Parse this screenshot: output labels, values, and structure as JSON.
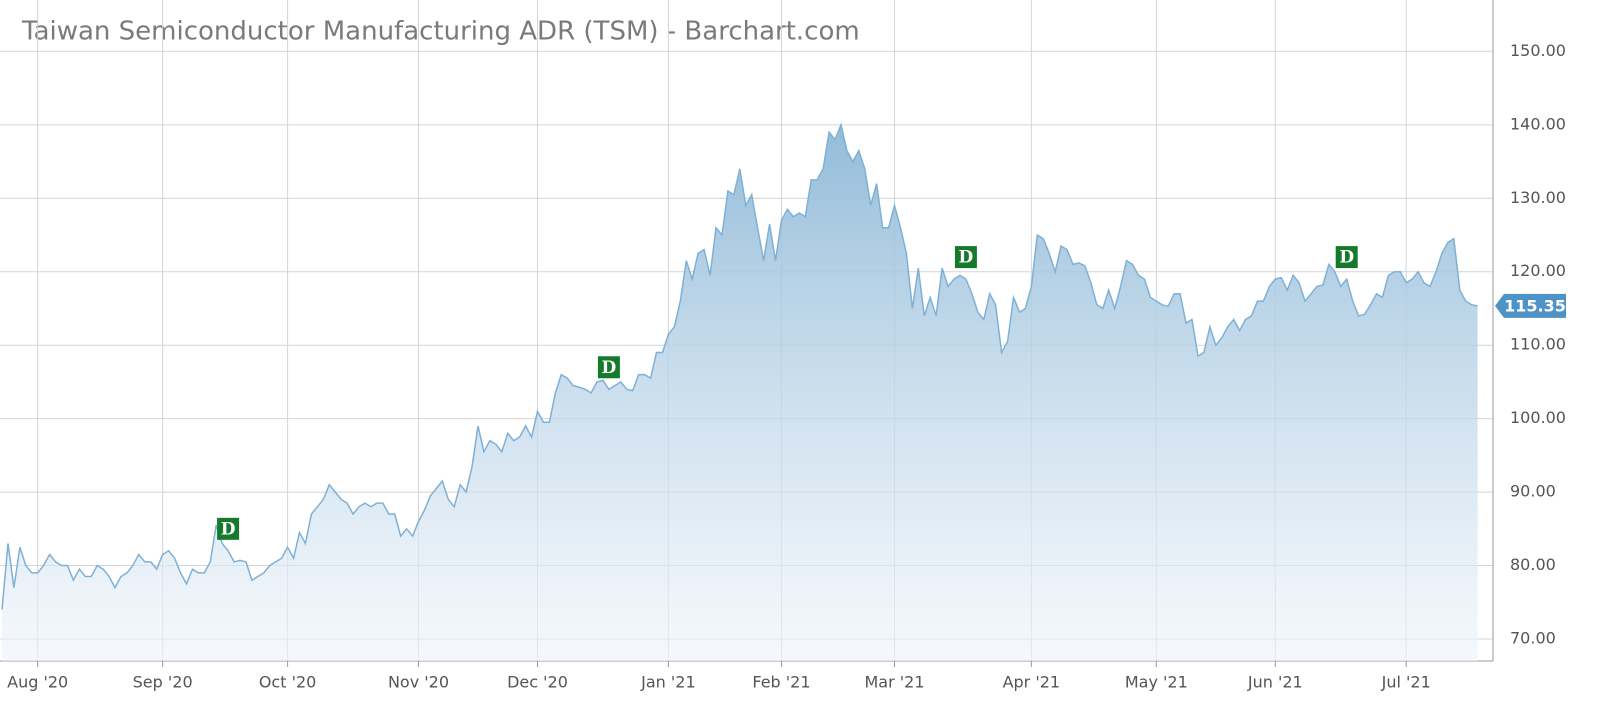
{
  "chart_data": {
    "type": "area",
    "title": "Taiwan Semiconductor Manufacturing ADR (TSM) - Barchart.com",
    "categories": [
      null,
      null,
      null,
      null,
      null,
      null,
      "Aug '20",
      null,
      null,
      null,
      null,
      null,
      null,
      null,
      null,
      null,
      null,
      null,
      null,
      null,
      null,
      null,
      null,
      null,
      null,
      null,
      null,
      "Sep '20",
      null,
      null,
      null,
      null,
      null,
      null,
      null,
      null,
      null,
      null,
      null,
      null,
      null,
      null,
      null,
      null,
      null,
      null,
      null,
      null,
      "Oct '20",
      null,
      null,
      null,
      null,
      null,
      null,
      null,
      null,
      null,
      null,
      null,
      null,
      null,
      null,
      null,
      null,
      null,
      null,
      null,
      null,
      null,
      "Nov '20",
      null,
      null,
      null,
      null,
      null,
      null,
      null,
      null,
      null,
      null,
      null,
      null,
      null,
      null,
      null,
      null,
      null,
      null,
      null,
      "Dec '20",
      null,
      null,
      null,
      null,
      null,
      null,
      null,
      null,
      null,
      null,
      null,
      null,
      null,
      null,
      null,
      null,
      null,
      null,
      null,
      null,
      null,
      "Jan '21",
      null,
      null,
      null,
      null,
      null,
      null,
      null,
      null,
      null,
      null,
      null,
      null,
      null,
      null,
      null,
      null,
      null,
      null,
      "Feb '21",
      null,
      null,
      null,
      null,
      null,
      null,
      null,
      null,
      null,
      null,
      null,
      null,
      null,
      null,
      null,
      null,
      null,
      null,
      "Mar '21",
      null,
      null,
      null,
      null,
      null,
      null,
      null,
      null,
      null,
      null,
      null,
      null,
      null,
      null,
      null,
      null,
      null,
      null,
      null,
      null,
      null,
      null,
      "Apr '21",
      null,
      null,
      null,
      null,
      null,
      null,
      null,
      null,
      null,
      null,
      null,
      null,
      null,
      null,
      null,
      null,
      null,
      null,
      null,
      null,
      "May '21",
      null,
      null,
      null,
      null,
      null,
      null,
      null,
      null,
      null,
      null,
      null,
      null,
      null,
      null,
      null,
      null,
      null,
      null,
      null,
      "Jun '21",
      null,
      null,
      null,
      null,
      null,
      null,
      null,
      null,
      null,
      null,
      null,
      null,
      null,
      null,
      null,
      null,
      null,
      null,
      null,
      null,
      null,
      "Jul '21",
      null,
      null,
      null,
      null,
      null,
      null,
      null,
      null,
      null,
      null,
      null,
      null
    ],
    "values": [
      74,
      83,
      77,
      82.5,
      80,
      79,
      79,
      80,
      81.5,
      80.5,
      80,
      80,
      78,
      79.5,
      78.5,
      78.5,
      80,
      79.5,
      78.5,
      77,
      78.5,
      79,
      80,
      81.5,
      80.5,
      80.5,
      79.5,
      81.5,
      82,
      81,
      79,
      77.5,
      79.5,
      79,
      79,
      80.5,
      85.5,
      83,
      82,
      80.5,
      80.7,
      80.5,
      78,
      78.5,
      79,
      80,
      80.5,
      81,
      82.5,
      81,
      84.5,
      83,
      87,
      88,
      89,
      91,
      90,
      89,
      88.5,
      87,
      88,
      88.5,
      88,
      88.5,
      88.5,
      87,
      87,
      84,
      85,
      84,
      86,
      87.5,
      89.5,
      90.5,
      91.5,
      89,
      88,
      91,
      90,
      93.5,
      99,
      95.5,
      97,
      96.5,
      95.5,
      98,
      97,
      97.5,
      99,
      97.5,
      101,
      99.5,
      99.5,
      103.5,
      106,
      105.5,
      104.5,
      104.3,
      104,
      103.5,
      105,
      105.2,
      104,
      104.5,
      105,
      104,
      103.8,
      106,
      106,
      105.5,
      109,
      109,
      111.5,
      112.5,
      116,
      121.5,
      119,
      122.5,
      123,
      119.5,
      126,
      125,
      131,
      130.5,
      134,
      129,
      130.5,
      126,
      121.5,
      126.5,
      121.5,
      127,
      128.5,
      127.5,
      128,
      127.5,
      132.5,
      132.5,
      134,
      139,
      138,
      140,
      136.5,
      135,
      136.5,
      134,
      129,
      132,
      126,
      126,
      129,
      126,
      122.5,
      115,
      120.5,
      114,
      116.5,
      114,
      120.5,
      118,
      119,
      119.5,
      119,
      117,
      114.5,
      113.5,
      117,
      115.5,
      109,
      110.5,
      116.5,
      114.5,
      115,
      118,
      125,
      124.5,
      122.5,
      120,
      123.5,
      123,
      121,
      121.2,
      120.8,
      118.5,
      115.5,
      115,
      117.5,
      115,
      118,
      121.5,
      121,
      119.5,
      119,
      116.5,
      116,
      115.5,
      115.3,
      117,
      117,
      113,
      113.5,
      108.5,
      109,
      112.5,
      110,
      111,
      112.5,
      113.5,
      112,
      113.5,
      114,
      116,
      116,
      118,
      119,
      119.2,
      117.5,
      119.5,
      118.5,
      116,
      117,
      118,
      118.2,
      121,
      120,
      118,
      119,
      116,
      114,
      114.2,
      115.5,
      117,
      116.5,
      119.5,
      120,
      120,
      118.5,
      119,
      120,
      118.5,
      118,
      120,
      122.5,
      124,
      124.5,
      117.5,
      116,
      115.5,
      115.35
    ],
    "color": "#7fb0d6",
    "ylim": [
      67,
      157
    ],
    "yticks": [
      {
        "value": 70,
        "label": "70.00"
      },
      {
        "value": 80,
        "label": "80.00"
      },
      {
        "value": 90,
        "label": "90.00"
      },
      {
        "value": 100,
        "label": "100.00"
      },
      {
        "value": 110,
        "label": "110.00"
      },
      {
        "value": 120,
        "label": "120.00"
      },
      {
        "value": 130,
        "label": "130.00"
      },
      {
        "value": 140,
        "label": "140.00"
      },
      {
        "value": 150,
        "label": "150.00"
      }
    ],
    "grid": true,
    "annotations": [
      {
        "text": "D",
        "index": 38
      },
      {
        "text": "D",
        "index": 102
      },
      {
        "text": "D",
        "index": 162
      },
      {
        "text": "D",
        "index": 226
      }
    ]
  }
}
